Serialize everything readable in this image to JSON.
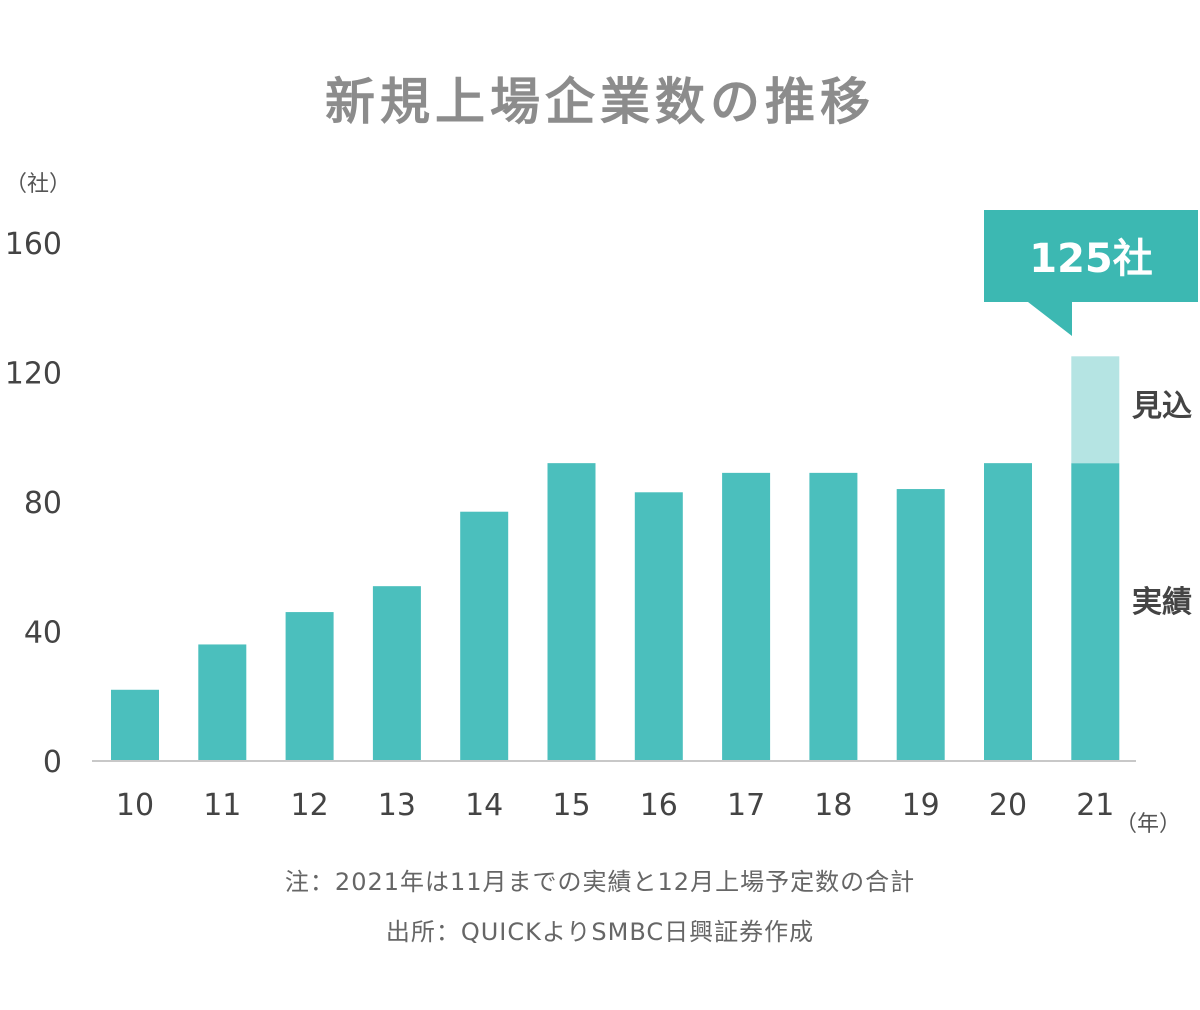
{
  "title": "新規上場企業数の推移",
  "y_unit": "（社）",
  "x_unit": "（年）",
  "callout_text": "125社",
  "legend": {
    "forecast": "見込",
    "actual": "実績"
  },
  "notes": [
    "注：2021年は11月までの実績と12月上場予定数の合計",
    "出所：QUICKよりSMBC日興証券作成"
  ],
  "colors": {
    "actual": "#4bbfbd",
    "forecast": "#b5e4e3",
    "callout": "#3cb8b2",
    "axis": "#c8c8c8"
  },
  "chart_data": {
    "type": "bar",
    "title": "新規上場企業数の推移",
    "categories": [
      "10",
      "11",
      "12",
      "13",
      "14",
      "15",
      "16",
      "17",
      "18",
      "19",
      "20",
      "21"
    ],
    "ylim": [
      0,
      160
    ],
    "yticks": [
      0,
      40,
      80,
      120,
      160
    ],
    "series": [
      {
        "name": "実績",
        "values": [
          22,
          36,
          46,
          54,
          77,
          92,
          83,
          89,
          89,
          84,
          92,
          92
        ]
      },
      {
        "name": "見込",
        "values": [
          0,
          0,
          0,
          0,
          0,
          0,
          0,
          0,
          0,
          0,
          0,
          33
        ]
      }
    ],
    "annotations": [
      {
        "category": "21",
        "text": "125社"
      }
    ],
    "grid": false
  }
}
